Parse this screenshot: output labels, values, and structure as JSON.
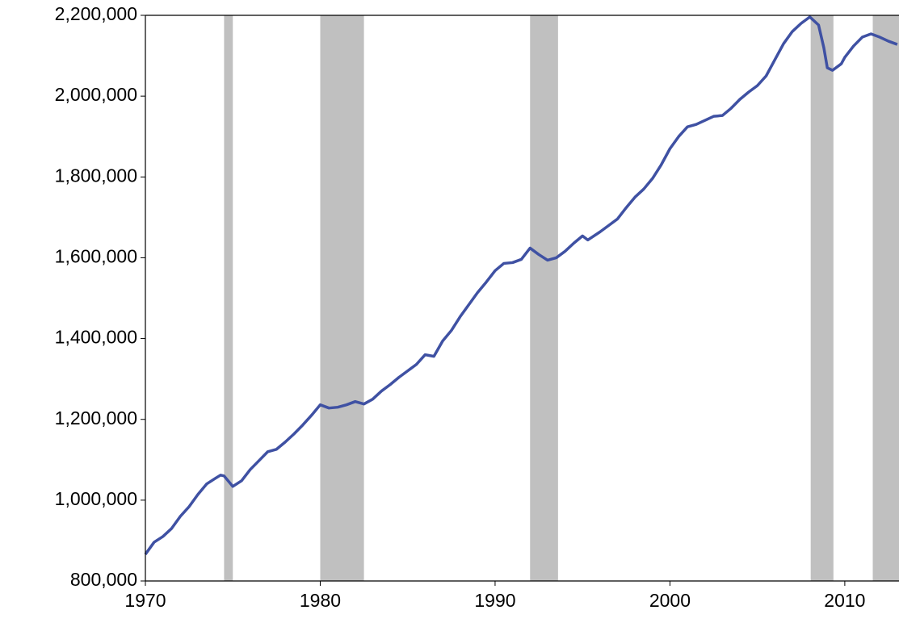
{
  "chart_data": {
    "type": "line",
    "x": [
      1970.0,
      1970.5,
      1971.0,
      1971.5,
      1972.0,
      1972.5,
      1973.0,
      1973.5,
      1974.0,
      1974.3,
      1974.5,
      1975.0,
      1975.5,
      1976.0,
      1976.5,
      1977.0,
      1977.5,
      1978.0,
      1978.5,
      1979.0,
      1979.5,
      1980.0,
      1980.5,
      1981.0,
      1981.5,
      1982.0,
      1982.5,
      1983.0,
      1983.5,
      1984.0,
      1984.5,
      1985.0,
      1985.5,
      1986.0,
      1986.5,
      1987.0,
      1987.5,
      1988.0,
      1988.5,
      1989.0,
      1989.5,
      1990.0,
      1990.5,
      1991.0,
      1991.5,
      1992.0,
      1992.5,
      1993.0,
      1993.5,
      1994.0,
      1994.5,
      1995.0,
      1995.3,
      1996.0,
      1996.5,
      1997.0,
      1997.5,
      1998.0,
      1998.5,
      1999.0,
      1999.5,
      2000.0,
      2000.5,
      2001.0,
      2001.5,
      2002.0,
      2002.5,
      2003.0,
      2003.5,
      2004.0,
      2004.5,
      2005.0,
      2005.5,
      2006.0,
      2006.5,
      2007.0,
      2007.5,
      2008.0,
      2008.5,
      2008.8,
      2009.0,
      2009.3,
      2009.8,
      2010.0,
      2010.5,
      2011.0,
      2011.5,
      2012.0,
      2012.5,
      2013.0
    ],
    "values": [
      866000,
      896000,
      910000,
      930000,
      960000,
      984000,
      1014000,
      1040000,
      1054000,
      1062000,
      1060000,
      1034000,
      1048000,
      1076000,
      1098000,
      1120000,
      1126000,
      1144000,
      1164000,
      1186000,
      1210000,
      1236000,
      1228000,
      1230000,
      1236000,
      1244000,
      1238000,
      1250000,
      1270000,
      1286000,
      1304000,
      1320000,
      1336000,
      1360000,
      1356000,
      1394000,
      1420000,
      1454000,
      1484000,
      1514000,
      1540000,
      1568000,
      1586000,
      1588000,
      1596000,
      1624000,
      1608000,
      1594000,
      1600000,
      1616000,
      1636000,
      1654000,
      1644000,
      1664000,
      1680000,
      1696000,
      1724000,
      1750000,
      1770000,
      1796000,
      1830000,
      1870000,
      1900000,
      1924000,
      1930000,
      1940000,
      1950000,
      1952000,
      1970000,
      1992000,
      2010000,
      2026000,
      2050000,
      2090000,
      2130000,
      2160000,
      2180000,
      2196000,
      2176000,
      2120000,
      2070000,
      2064000,
      2080000,
      2096000,
      2124000,
      2146000,
      2154000,
      2146000,
      2136000,
      2128000
    ],
    "color": "#3f51a3",
    "shade_color": "#c0c0c0",
    "shaded_regions": [
      {
        "start": 1974.5,
        "end": 1975.0
      },
      {
        "start": 1980.0,
        "end": 1982.5
      },
      {
        "start": 1992.0,
        "end": 1993.6
      },
      {
        "start": 2008.05,
        "end": 2009.35
      },
      {
        "start": 2011.6,
        "end": 2013.1
      }
    ],
    "xlim": [
      1970,
      2013.1
    ],
    "xticks": [
      1970,
      1980,
      1990,
      2000,
      2010
    ],
    "ylim": [
      800000,
      2200000
    ],
    "yticks": [
      {
        "value": 800000,
        "label": "800,000"
      },
      {
        "value": 1000000,
        "label": "1,000,000"
      },
      {
        "value": 1200000,
        "label": "1,200,000"
      },
      {
        "value": 1400000,
        "label": "1,400,000"
      },
      {
        "value": 1600000,
        "label": "1,600,000"
      },
      {
        "value": 1800000,
        "label": "1,800,000"
      },
      {
        "value": 2000000,
        "label": "2,000,000"
      },
      {
        "value": 2200000,
        "label": "2,200,000"
      }
    ]
  }
}
